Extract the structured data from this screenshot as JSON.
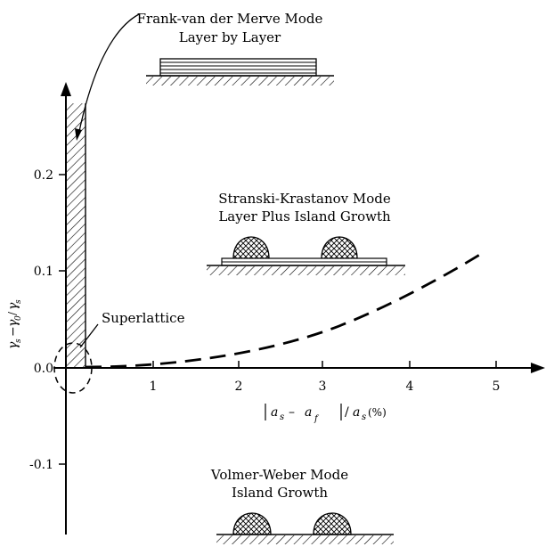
{
  "modes": {
    "fvdm": {
      "title": "Frank-van der Merve Mode",
      "subtitle": "Layer by Layer"
    },
    "sk": {
      "title": "Stranski-Krastanov Mode",
      "subtitle": "Layer Plus Island Growth"
    },
    "vw": {
      "title": "Volmer-Weber Mode",
      "subtitle": "Island Growth"
    }
  },
  "annotations": {
    "superlattice": "Superlattice"
  },
  "axes": {
    "x_ticks": [
      "1",
      "2",
      "3",
      "4",
      "5"
    ],
    "y_ticks": [
      "0.2",
      "0.1",
      "0.0",
      "-0.1"
    ]
  },
  "colors": {
    "ink": "#000000",
    "background": "#ffffff"
  }
}
